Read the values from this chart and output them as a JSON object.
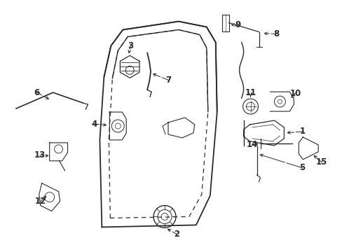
{
  "bg_color": "#ffffff",
  "line_color": "#2a2a2a",
  "fig_w": 4.89,
  "fig_h": 3.6,
  "dpi": 100
}
